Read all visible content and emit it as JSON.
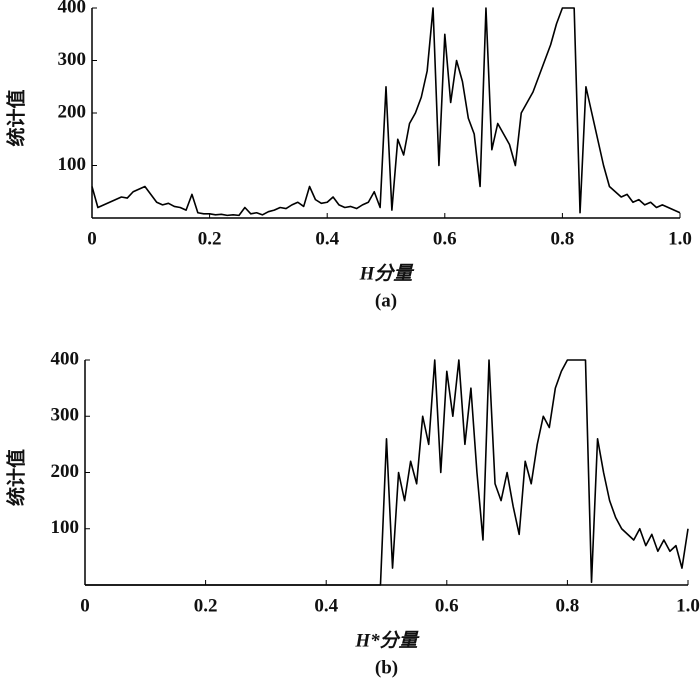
{
  "chart_data": [
    {
      "type": "line",
      "ylabel": "统计值",
      "xlabel": "H分量",
      "caption": "(a)",
      "color": "#000000",
      "xlim": [
        0,
        1
      ],
      "ylim": [
        0,
        400
      ],
      "yticks": [
        100,
        200,
        300,
        400
      ],
      "xticks": [
        0,
        0.2,
        0.4,
        0.6,
        0.8,
        {
          "value": 1,
          "label": "1.0"
        }
      ],
      "x": [
        0,
        0.01,
        0.02,
        0.03,
        0.04,
        0.05,
        0.06,
        0.07,
        0.08,
        0.09,
        0.1,
        0.11,
        0.12,
        0.13,
        0.14,
        0.15,
        0.16,
        0.17,
        0.18,
        0.19,
        0.2,
        0.21,
        0.22,
        0.23,
        0.24,
        0.25,
        0.26,
        0.27,
        0.28,
        0.29,
        0.3,
        0.31,
        0.32,
        0.33,
        0.34,
        0.35,
        0.36,
        0.37,
        0.38,
        0.39,
        0.4,
        0.41,
        0.42,
        0.43,
        0.44,
        0.45,
        0.46,
        0.47,
        0.48,
        0.49,
        0.5,
        0.51,
        0.52,
        0.53,
        0.54,
        0.55,
        0.56,
        0.57,
        0.58,
        0.59,
        0.6,
        0.61,
        0.62,
        0.63,
        0.64,
        0.65,
        0.66,
        0.67,
        0.68,
        0.69,
        0.7,
        0.71,
        0.72,
        0.73,
        0.74,
        0.75,
        0.76,
        0.77,
        0.78,
        0.79,
        0.8,
        0.81,
        0.82,
        0.83,
        0.84,
        0.85,
        0.86,
        0.87,
        0.88,
        0.89,
        0.9,
        0.91,
        0.92,
        0.93,
        0.94,
        0.95,
        0.96,
        0.97,
        0.98,
        0.99,
        1
      ],
      "values": [
        60,
        20,
        25,
        30,
        35,
        40,
        38,
        50,
        55,
        60,
        45,
        30,
        25,
        28,
        22,
        20,
        15,
        45,
        10,
        8,
        8,
        6,
        7,
        5,
        6,
        5,
        20,
        8,
        10,
        6,
        12,
        15,
        20,
        18,
        25,
        30,
        22,
        60,
        35,
        28,
        30,
        40,
        25,
        20,
        22,
        18,
        25,
        30,
        50,
        20,
        250,
        15,
        150,
        120,
        180,
        200,
        230,
        280,
        400,
        100,
        350,
        220,
        300,
        260,
        190,
        160,
        60,
        400,
        130,
        180,
        160,
        140,
        100,
        200,
        220,
        240,
        270,
        300,
        330,
        370,
        400,
        400,
        400,
        10,
        250,
        200,
        150,
        100,
        60,
        50,
        40,
        45,
        30,
        35,
        25,
        30,
        20,
        25,
        20,
        15,
        10
      ]
    },
    {
      "type": "line",
      "ylabel": "统计值",
      "xlabel": "H*分量",
      "caption": "(b)",
      "color": "#000000",
      "xlim": [
        0,
        1
      ],
      "ylim": [
        0,
        400
      ],
      "yticks": [
        100,
        200,
        300,
        400
      ],
      "xticks": [
        0,
        0.2,
        0.4,
        0.6,
        0.8,
        {
          "value": 1,
          "label": "1.0"
        }
      ],
      "x": [
        0,
        0.01,
        0.02,
        0.03,
        0.04,
        0.05,
        0.06,
        0.07,
        0.08,
        0.09,
        0.1,
        0.11,
        0.12,
        0.13,
        0.14,
        0.15,
        0.16,
        0.17,
        0.18,
        0.19,
        0.2,
        0.21,
        0.22,
        0.23,
        0.24,
        0.25,
        0.26,
        0.27,
        0.28,
        0.29,
        0.3,
        0.31,
        0.32,
        0.33,
        0.34,
        0.35,
        0.36,
        0.37,
        0.38,
        0.39,
        0.4,
        0.41,
        0.42,
        0.43,
        0.44,
        0.45,
        0.46,
        0.47,
        0.48,
        0.49,
        0.5,
        0.51,
        0.52,
        0.53,
        0.54,
        0.55,
        0.56,
        0.57,
        0.58,
        0.59,
        0.6,
        0.61,
        0.62,
        0.63,
        0.64,
        0.65,
        0.66,
        0.67,
        0.68,
        0.69,
        0.7,
        0.71,
        0.72,
        0.73,
        0.74,
        0.75,
        0.76,
        0.77,
        0.78,
        0.79,
        0.8,
        0.81,
        0.82,
        0.83,
        0.84,
        0.85,
        0.86,
        0.87,
        0.88,
        0.89,
        0.9,
        0.91,
        0.92,
        0.93,
        0.94,
        0.95,
        0.96,
        0.97,
        0.98,
        0.99,
        1
      ],
      "values": [
        0,
        0,
        0,
        0,
        0,
        0,
        0,
        0,
        0,
        0,
        0,
        0,
        0,
        0,
        0,
        0,
        0,
        0,
        0,
        0,
        0,
        0,
        0,
        0,
        0,
        0,
        0,
        0,
        0,
        0,
        0,
        0,
        0,
        0,
        0,
        0,
        0,
        0,
        0,
        0,
        0,
        0,
        0,
        0,
        0,
        0,
        0,
        0,
        0,
        0,
        260,
        30,
        200,
        150,
        220,
        180,
        300,
        250,
        400,
        200,
        380,
        300,
        400,
        250,
        350,
        200,
        80,
        400,
        180,
        150,
        200,
        140,
        90,
        220,
        180,
        250,
        300,
        280,
        350,
        380,
        400,
        400,
        400,
        400,
        5,
        260,
        200,
        150,
        120,
        100,
        90,
        80,
        100,
        70,
        90,
        60,
        80,
        60,
        70,
        30,
        100
      ]
    }
  ]
}
